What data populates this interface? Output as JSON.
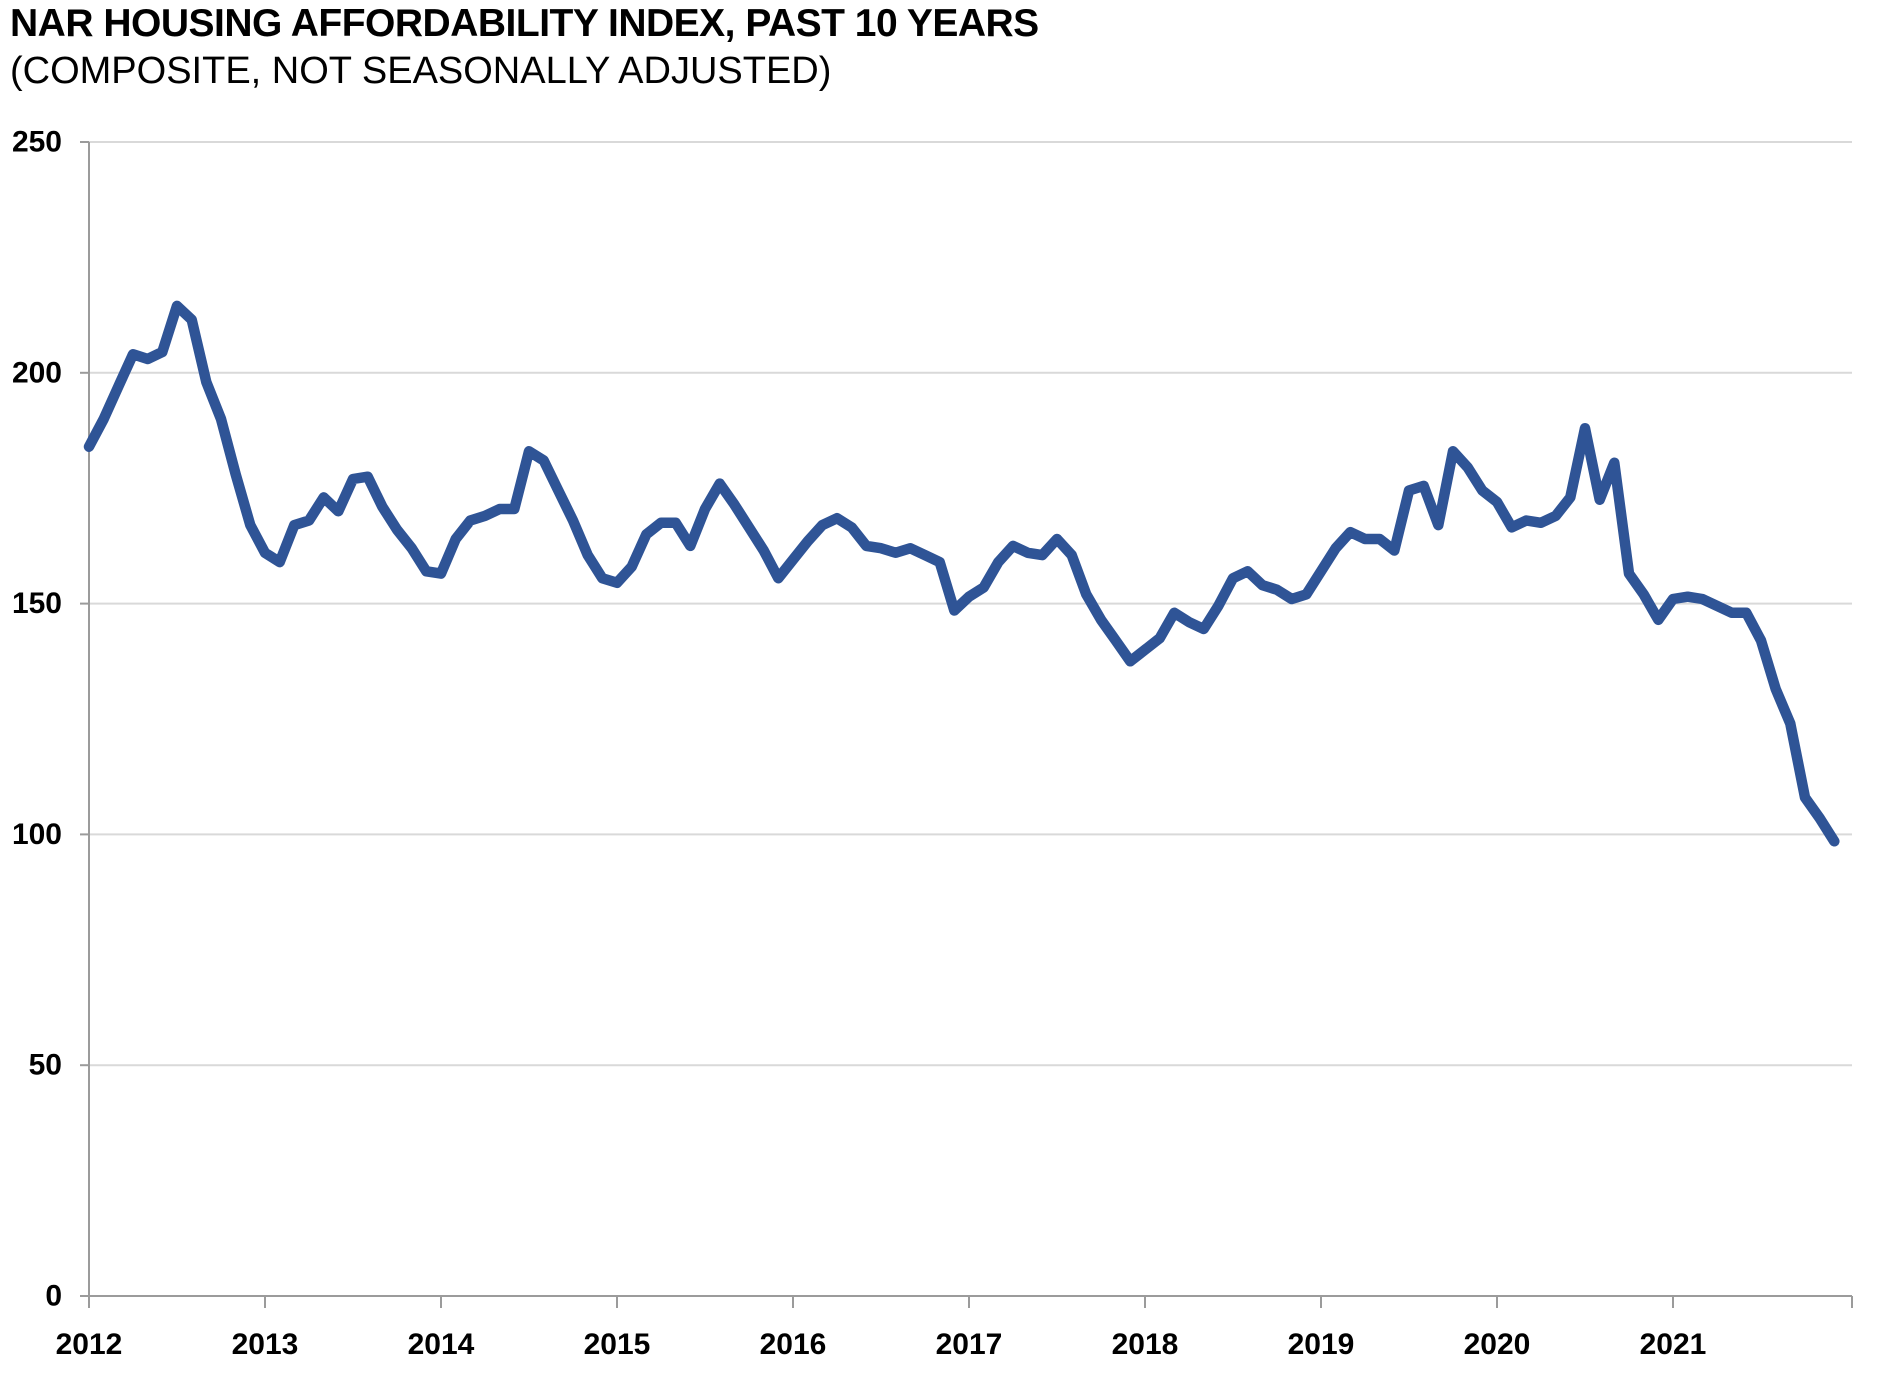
{
  "header": {
    "title": "NAR HOUSING AFFORDABILITY INDEX, PAST 10 YEARS",
    "subtitle": "(COMPOSITE, NOT SEASONALLY ADJUSTED)"
  },
  "colors": {
    "line": "#2F5496",
    "gridline": "#D9D9D9",
    "axis": "#9B9B9B",
    "text": "#000000",
    "background": "#FFFFFF"
  },
  "chart_data": {
    "type": "line",
    "title": "NAR HOUSING AFFORDABILITY INDEX, PAST 10 YEARS",
    "subtitle": "(COMPOSITE, NOT SEASONALLY ADJUSTED)",
    "frequency": "monthly",
    "x_start_year": 2012,
    "points_per_year": 12,
    "x_tick_labels": [
      "2012",
      "2013",
      "2014",
      "2015",
      "2016",
      "2017",
      "2018",
      "2019",
      "2020",
      "2021"
    ],
    "y_ticks": [
      0,
      50,
      100,
      150,
      200,
      250
    ],
    "ylim": [
      0,
      250
    ],
    "grid": "horizontal",
    "legend": "none",
    "series": [
      {
        "name": "Housing Affordability Index (Composite, NSA)",
        "values": [
          184,
          190,
          197,
          204,
          203,
          204.5,
          214.5,
          211.5,
          198,
          190,
          178,
          167,
          161,
          159,
          167,
          168,
          173,
          170,
          177,
          177.5,
          171,
          166,
          162,
          157,
          156.5,
          164,
          168,
          169,
          170.5,
          170.5,
          183,
          181,
          174.5,
          168,
          160.5,
          155.5,
          154.5,
          158,
          165,
          167.5,
          167.5,
          162.5,
          170.5,
          176,
          171.5,
          166.5,
          161.5,
          155.5,
          159.5,
          163.5,
          167,
          168.5,
          166.5,
          162.5,
          162,
          161,
          162,
          160.5,
          159,
          148.5,
          151.5,
          153.5,
          159,
          162.5,
          161,
          160.5,
          164,
          160.5,
          152,
          146.5,
          142,
          137.5,
          140,
          142.5,
          148,
          146,
          144.5,
          149.5,
          155.5,
          157,
          154,
          153,
          151,
          152,
          157,
          162,
          165.5,
          164,
          164,
          161.5,
          174.5,
          175.5,
          167,
          183,
          179.5,
          174.5,
          172,
          166.5,
          168,
          167.5,
          169,
          173,
          188,
          172.5,
          180.5,
          156.5,
          152,
          146.5,
          151,
          151.5,
          151,
          149.5,
          148,
          148,
          142,
          131.5,
          124,
          108,
          103.5,
          98.5
        ]
      }
    ]
  }
}
